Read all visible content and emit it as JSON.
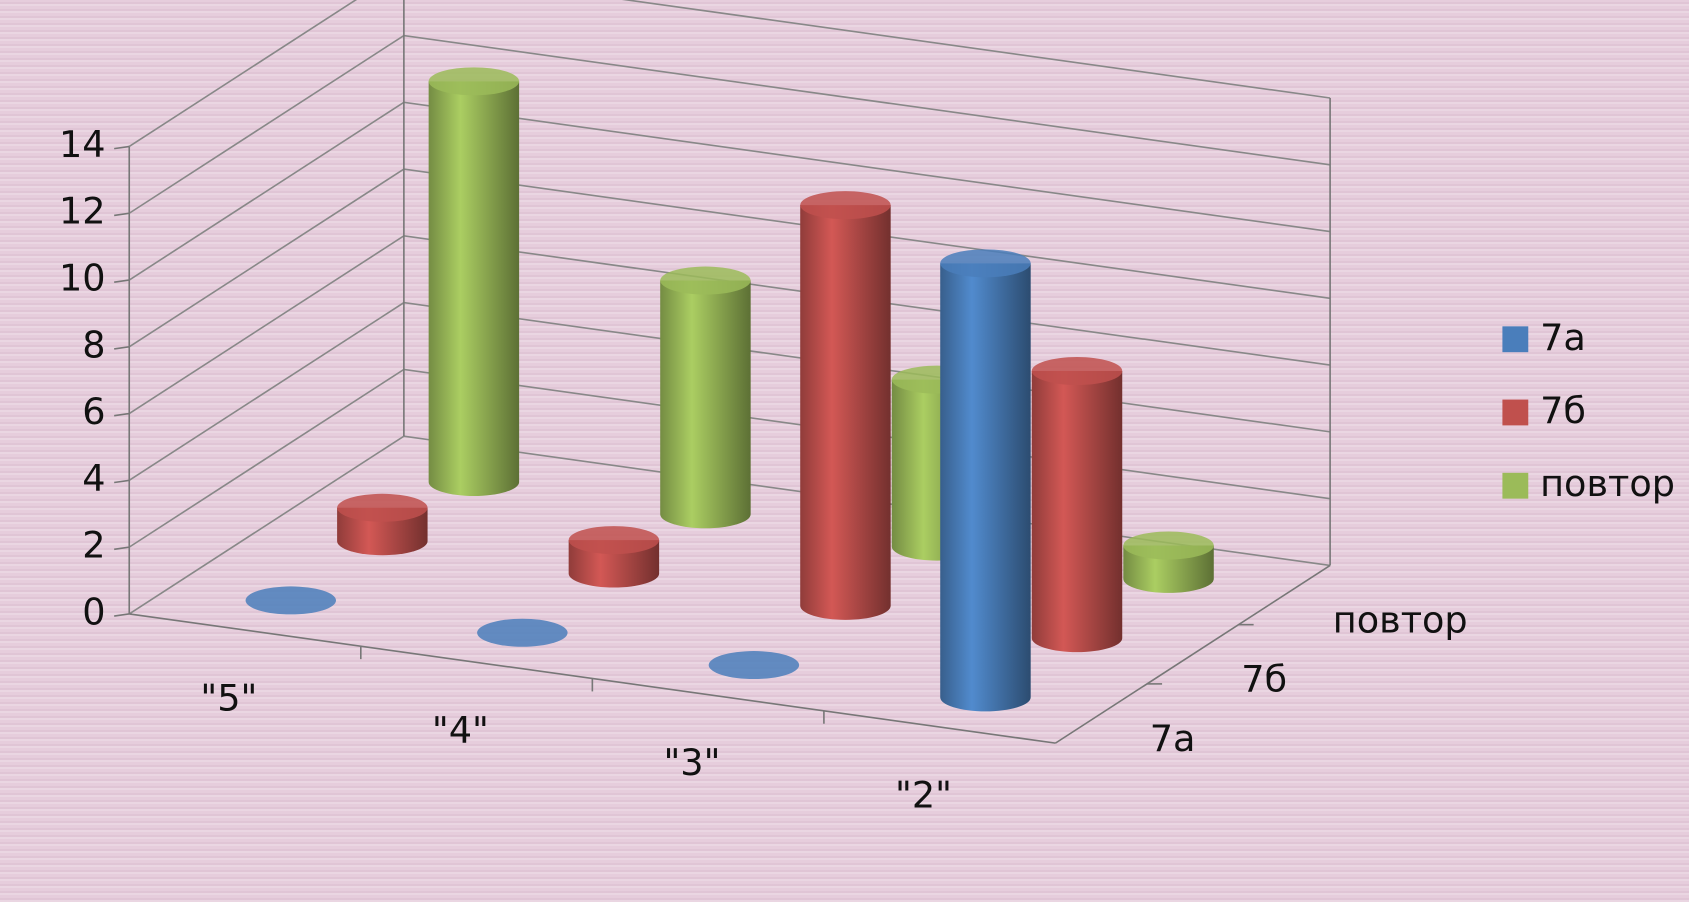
{
  "chart_data": {
    "type": "bar3d",
    "categories": [
      "\"5\"",
      "\"4\"",
      "\"3\"",
      "\"2\""
    ],
    "series": [
      {
        "name": "7а",
        "color": "#4a7ebb",
        "values": [
          0,
          0,
          0,
          13
        ]
      },
      {
        "name": "7б",
        "color": "#c0504d",
        "values": [
          1,
          1,
          12,
          8
        ]
      },
      {
        "name": "повтор",
        "color": "#9bbb59",
        "values": [
          12,
          7,
          5,
          1
        ]
      }
    ],
    "ylim": [
      0,
      14
    ],
    "yticks": [
      0,
      2,
      4,
      6,
      8,
      10,
      12,
      14
    ],
    "grid": true,
    "legend": "right"
  }
}
